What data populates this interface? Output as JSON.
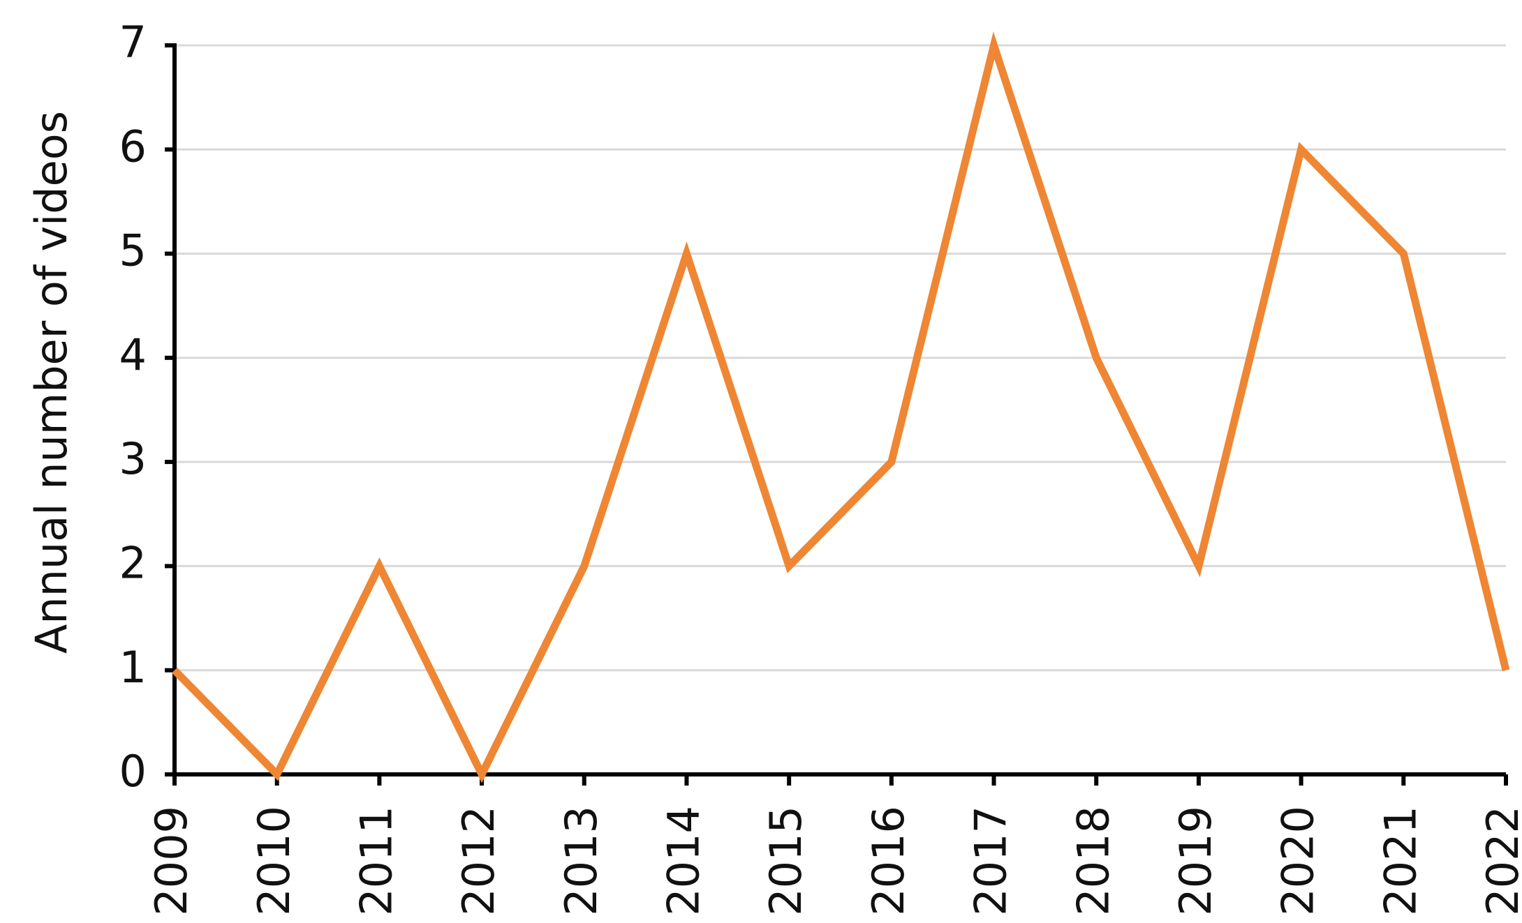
{
  "chart_data": {
    "type": "line",
    "y_label": "Annual number of videos",
    "categories": [
      "2009",
      "2010",
      "2011",
      "2012",
      "2013",
      "2014",
      "2015",
      "2016",
      "2017",
      "2018",
      "2019",
      "2020",
      "2021",
      "2022"
    ],
    "series": [
      {
        "color": "#ef8633",
        "values": [
          1,
          0,
          2,
          0,
          2,
          5,
          2,
          3,
          7,
          4,
          2,
          6,
          5,
          1
        ]
      }
    ],
    "ylim": [
      0,
      7
    ],
    "yticks": [
      0,
      1,
      2,
      3,
      4,
      5,
      6,
      7
    ],
    "grid": true
  }
}
